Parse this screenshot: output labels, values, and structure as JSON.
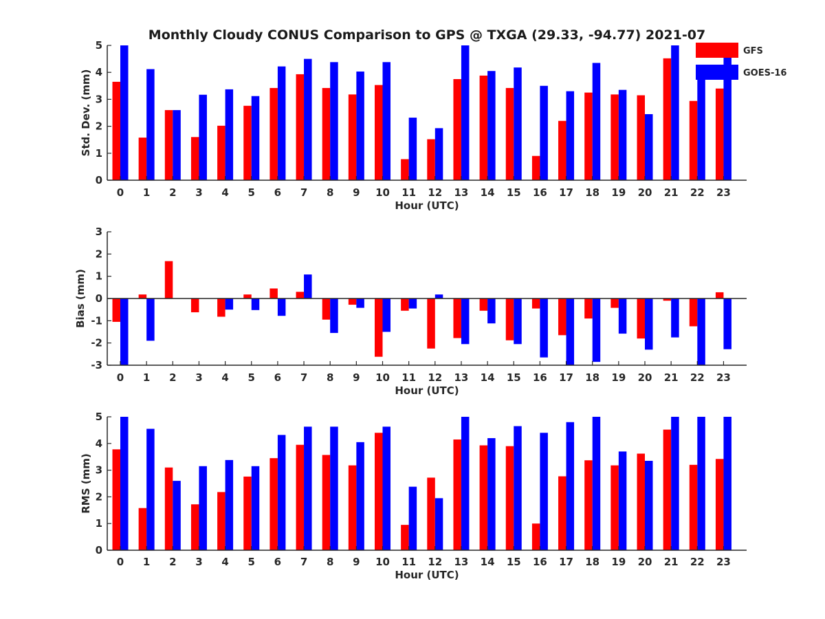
{
  "chart_data": [
    {
      "type": "bar",
      "title": "Monthly Cloudy CONUS Comparison to GPS @ TXGA (29.33, -94.77) 2021-07",
      "xlabel": "Hour (UTC)",
      "ylabel": "Std. Dev. (mm)",
      "ylim": [
        0,
        5
      ],
      "yticks": [
        "0",
        "1",
        "2",
        "3",
        "4",
        "5"
      ],
      "categories": [
        "0",
        "1",
        "2",
        "3",
        "4",
        "5",
        "6",
        "7",
        "8",
        "9",
        "10",
        "11",
        "12",
        "13",
        "14",
        "15",
        "16",
        "17",
        "18",
        "19",
        "20",
        "21",
        "22",
        "23"
      ],
      "legend": "top-right",
      "series": [
        {
          "name": "GFS",
          "color": "#ff0000",
          "values": [
            3.65,
            1.58,
            2.6,
            1.6,
            2.02,
            2.76,
            3.42,
            3.93,
            3.42,
            3.18,
            3.53,
            0.78,
            1.52,
            3.75,
            3.88,
            3.42,
            0.9,
            2.2,
            3.25,
            3.18,
            3.15,
            4.52,
            2.94,
            3.4
          ]
        },
        {
          "name": "GOES-16",
          "color": "#0000ff",
          "values": [
            5.0,
            4.12,
            2.6,
            3.17,
            3.37,
            3.12,
            4.22,
            4.5,
            4.38,
            4.03,
            4.38,
            2.32,
            1.93,
            5.0,
            4.05,
            4.18,
            3.5,
            3.3,
            4.35,
            3.35,
            2.45,
            5.0,
            3.82,
            4.6
          ]
        }
      ]
    },
    {
      "type": "bar",
      "xlabel": "Hour (UTC)",
      "ylabel": "Bias (mm)",
      "ylim": [
        -3,
        3
      ],
      "yticks": [
        "-3",
        "-2",
        "-1",
        "0",
        "1",
        "2",
        "3"
      ],
      "categories": [
        "0",
        "1",
        "2",
        "3",
        "4",
        "5",
        "6",
        "7",
        "8",
        "9",
        "10",
        "11",
        "12",
        "13",
        "14",
        "15",
        "16",
        "17",
        "18",
        "19",
        "20",
        "21",
        "22",
        "23"
      ],
      "series": [
        {
          "name": "GFS",
          "color": "#ff0000",
          "values": [
            -1.05,
            0.18,
            1.68,
            -0.62,
            -0.82,
            0.18,
            0.45,
            0.3,
            -0.95,
            -0.28,
            -2.62,
            -0.55,
            -2.25,
            -1.78,
            -0.55,
            -1.88,
            -0.45,
            -1.65,
            -0.9,
            -0.42,
            -1.8,
            -0.1,
            -1.25,
            0.28
          ]
        },
        {
          "name": "GOES-16",
          "color": "#0000ff",
          "values": [
            -3.0,
            -1.9,
            0,
            0,
            -0.5,
            -0.52,
            -0.78,
            1.08,
            -1.55,
            -0.42,
            -1.5,
            -0.45,
            0.18,
            -2.05,
            -1.12,
            -2.05,
            -2.65,
            -3.0,
            -2.85,
            -1.58,
            -2.3,
            -1.75,
            -3.0,
            -2.28
          ]
        }
      ]
    },
    {
      "type": "bar",
      "xlabel": "Hour (UTC)",
      "ylabel": "RMS (mm)",
      "ylim": [
        0,
        5
      ],
      "yticks": [
        "0",
        "1",
        "2",
        "3",
        "4",
        "5"
      ],
      "categories": [
        "0",
        "1",
        "2",
        "3",
        "4",
        "5",
        "6",
        "7",
        "8",
        "9",
        "10",
        "11",
        "12",
        "13",
        "14",
        "15",
        "16",
        "17",
        "18",
        "19",
        "20",
        "21",
        "22",
        "23"
      ],
      "series": [
        {
          "name": "GFS",
          "color": "#ff0000",
          "values": [
            3.78,
            1.58,
            3.1,
            1.72,
            2.18,
            2.76,
            3.45,
            3.95,
            3.57,
            3.18,
            4.4,
            0.95,
            2.72,
            4.15,
            3.93,
            3.9,
            1.0,
            2.77,
            3.37,
            3.18,
            3.62,
            4.52,
            3.2,
            3.42
          ]
        },
        {
          "name": "GOES-16",
          "color": "#0000ff",
          "values": [
            5.0,
            4.55,
            2.6,
            3.15,
            3.38,
            3.15,
            4.32,
            4.63,
            4.63,
            4.05,
            4.63,
            2.38,
            1.95,
            5.0,
            4.2,
            4.65,
            4.4,
            4.8,
            5.0,
            3.7,
            3.35,
            5.0,
            5.0,
            5.0
          ]
        }
      ]
    }
  ]
}
